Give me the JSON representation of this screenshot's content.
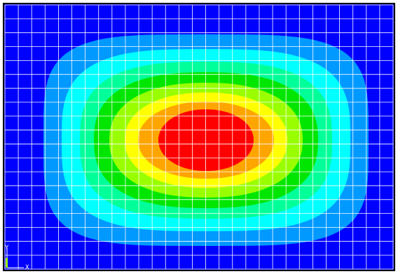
{
  "viewport": {
    "background": "#000000",
    "field_background": "#0000ff",
    "mesh_color": "#ffffff"
  },
  "contour": {
    "type": "filled-contour",
    "bands": [
      {
        "level": 1,
        "color": "#0000ff"
      },
      {
        "level": 2,
        "color": "#0099ff"
      },
      {
        "level": 3,
        "color": "#00ffff"
      },
      {
        "level": 4,
        "color": "#00ff99"
      },
      {
        "level": 5,
        "color": "#00e600"
      },
      {
        "level": 6,
        "color": "#99ff00"
      },
      {
        "level": 7,
        "color": "#ffff00"
      },
      {
        "level": 8,
        "color": "#ffa500"
      },
      {
        "level": 9,
        "color": "#ff0000"
      }
    ]
  },
  "mesh": {
    "columns": 29,
    "rows": 19
  },
  "triad": {
    "y_label": "Y",
    "x_label": "X",
    "z_color": "#99ff00"
  }
}
